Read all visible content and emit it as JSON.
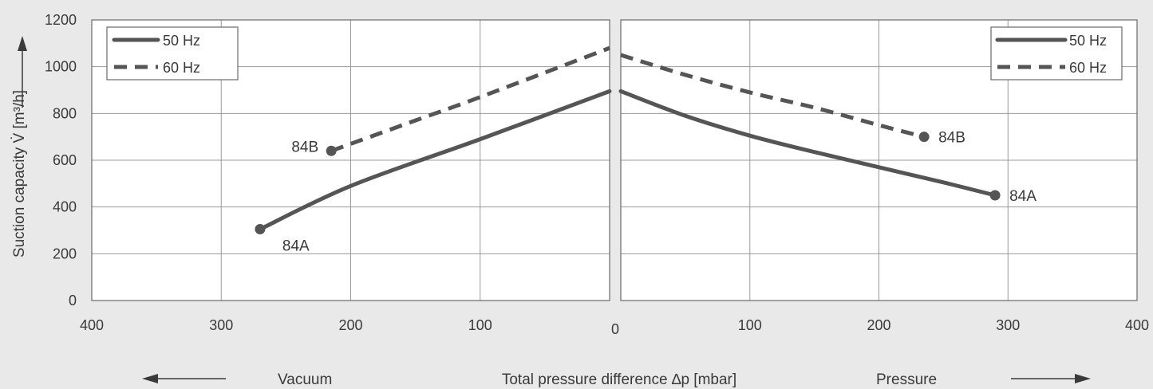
{
  "chart_data": {
    "type": "line",
    "ylabel": "Suction capacity V̇ [m³/h]",
    "xlabel": "Total pressure difference ∆p [mbar]",
    "left_direction_label": "Vacuum",
    "right_direction_label": "Pressure",
    "ylim": [
      0,
      1200
    ],
    "yticks": [
      0,
      200,
      400,
      600,
      800,
      1000,
      1200
    ],
    "panels": [
      {
        "side": "vacuum",
        "xlim": [
          400,
          0
        ],
        "xticks": [
          "400",
          "300",
          "200",
          "100"
        ],
        "legend": {
          "placement": "top-left",
          "entries": [
            "50 Hz",
            "60 Hz"
          ]
        },
        "series": [
          {
            "name": "50 Hz",
            "point_label": "84A",
            "style": "solid",
            "x": [
              270,
              200,
              100,
              0
            ],
            "y": [
              305,
              490,
              690,
              895
            ]
          },
          {
            "name": "60 Hz",
            "point_label": "84B",
            "style": "dashed",
            "x": [
              215,
              150,
              100,
              0
            ],
            "y": [
              640,
              770,
              870,
              1080
            ]
          }
        ]
      },
      {
        "side": "pressure",
        "xlim": [
          0,
          400
        ],
        "xticks": [
          "100",
          "200",
          "300",
          "400"
        ],
        "legend": {
          "placement": "top-right",
          "entries": [
            "50 Hz",
            "60 Hz"
          ]
        },
        "series": [
          {
            "name": "50 Hz",
            "point_label": "84A",
            "style": "solid",
            "x": [
              0,
              50,
              100,
              150,
              200,
              250,
              290
            ],
            "y": [
              895,
              790,
              705,
              635,
              570,
              505,
              450
            ]
          },
          {
            "name": "60 Hz",
            "point_label": "84B",
            "style": "dashed",
            "x": [
              0,
              50,
              100,
              150,
              200,
              235
            ],
            "y": [
              1050,
              965,
              890,
              825,
              750,
              700
            ]
          }
        ]
      }
    ],
    "center_tick": "0",
    "grid": true
  }
}
